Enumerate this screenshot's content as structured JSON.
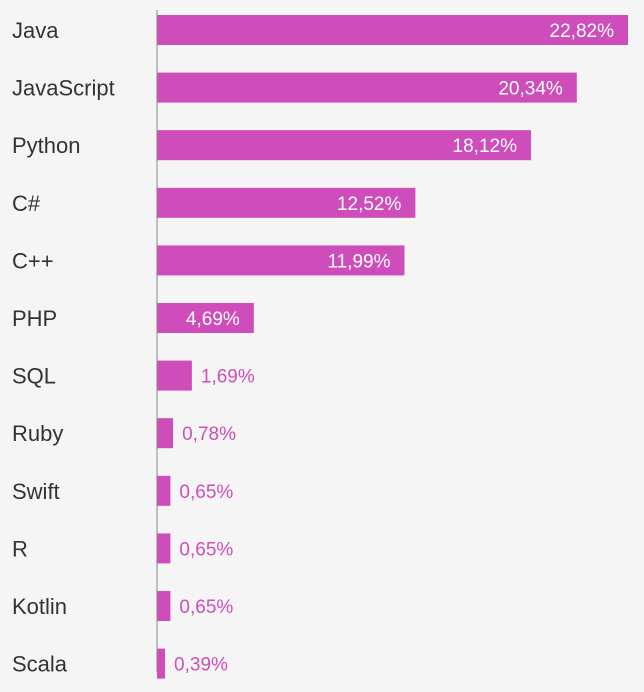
{
  "chart_data": {
    "type": "bar",
    "orientation": "horizontal",
    "categories": [
      "Java",
      "JavaScript",
      "Python",
      "C#",
      "C++",
      "PHP",
      "SQL",
      "Ruby",
      "Swift",
      "R",
      "Kotlin",
      "Scala"
    ],
    "values": [
      22.82,
      20.34,
      18.12,
      12.52,
      11.99,
      4.69,
      1.69,
      0.78,
      0.65,
      0.65,
      0.65,
      0.39
    ],
    "value_labels": [
      "22,82%",
      "20,34%",
      "18,12%",
      "12,52%",
      "11,99%",
      "4,69%",
      "1,69%",
      "0,78%",
      "0,65%",
      "0,65%",
      "0,65%",
      "0,39%"
    ],
    "title": "",
    "xlabel": "",
    "ylabel": "",
    "xlim": [
      0,
      23.5
    ],
    "grid": false,
    "legend": "none"
  },
  "colors": {
    "bar": "#cf4dbb",
    "background": "#f5f5f5",
    "axis": "#888888",
    "label_text": "#333333",
    "value_inside": "#ffffff",
    "value_outside": "#cf4dbb"
  }
}
